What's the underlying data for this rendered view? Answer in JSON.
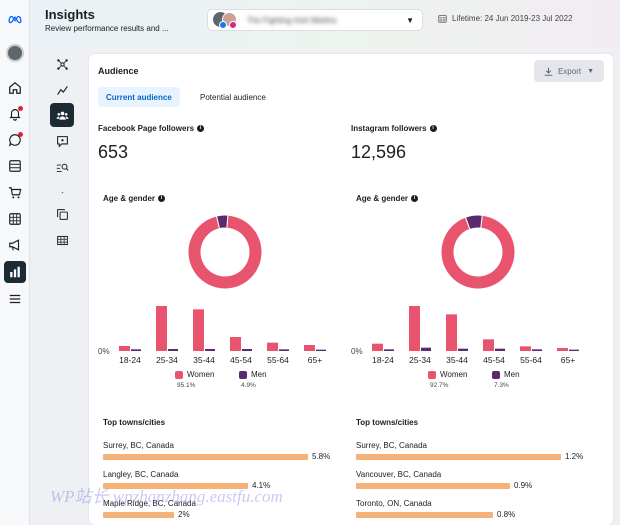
{
  "header": {
    "title": "Insights",
    "subtitle": "Review performance results and ...",
    "page_name": "The Fighting Irish Marlins",
    "date_range": "Lifetime: 24 Jun 2019-23 Jul 2022"
  },
  "card": {
    "title": "Audience",
    "export_label": "Export",
    "tabs": [
      "Current audience",
      "Potential audience"
    ]
  },
  "colors": {
    "women": "#e8546e",
    "men": "#5b2a6e",
    "towns": "#f5b278",
    "accent": "#0a66c2"
  },
  "facebook": {
    "followers_label": "Facebook Page followers",
    "followers_value": "653",
    "age_gender_label": "Age & gender",
    "legend": {
      "women": "Women",
      "women_pct": "95.1%",
      "men": "Men",
      "men_pct": "4.9%"
    },
    "towns_label": "Top towns/cities",
    "towns": [
      {
        "name": "Surrey, BC, Canada",
        "pct": "5.8%",
        "value": 5.8
      },
      {
        "name": "Langley, BC, Canada",
        "pct": "4.1%",
        "value": 4.1
      },
      {
        "name": "Maple Ridge, BC, Canada",
        "pct": "2%",
        "value": 2.0
      }
    ]
  },
  "instagram": {
    "followers_label": "Instagram followers",
    "followers_value": "12,596",
    "age_gender_label": "Age & gender",
    "legend": {
      "women": "Women",
      "women_pct": "92.7%",
      "men": "Men",
      "men_pct": "7.3%"
    },
    "towns_label": "Top towns/cities",
    "towns": [
      {
        "name": "Surrey, BC, Canada",
        "pct": "1.2%",
        "value": 1.2
      },
      {
        "name": "Vancouver, BC, Canada",
        "pct": "0.9%",
        "value": 0.9
      },
      {
        "name": "Toronto, ON, Canada",
        "pct": "0.8%",
        "value": 0.8
      }
    ]
  },
  "chart_data": [
    {
      "type": "pie",
      "title": "Facebook Page followers – Age & gender",
      "labels": [
        "Women",
        "Men"
      ],
      "values": [
        95.1,
        4.9
      ]
    },
    {
      "type": "bar",
      "title": "Facebook Page followers – Age & gender",
      "categories": [
        "18-24",
        "25-34",
        "35-44",
        "45-54",
        "55-64",
        "65+"
      ],
      "zero_label": "0%",
      "series": [
        {
          "name": "Women",
          "values": [
            1.5,
            13.5,
            12.5,
            4.2,
            2.5,
            1.8
          ]
        },
        {
          "name": "Men",
          "values": [
            0.5,
            0.6,
            0.6,
            0.6,
            0.5,
            0.4
          ]
        }
      ]
    },
    {
      "type": "pie",
      "title": "Instagram followers – Age & gender",
      "labels": [
        "Women",
        "Men"
      ],
      "values": [
        92.7,
        7.3
      ]
    },
    {
      "type": "bar",
      "title": "Instagram followers – Age & gender",
      "categories": [
        "18-24",
        "25-34",
        "35-44",
        "45-54",
        "55-64",
        "65+"
      ],
      "zero_label": "0%",
      "series": [
        {
          "name": "Women",
          "values": [
            2.2,
            13.5,
            11.0,
            3.5,
            1.4,
            0.9
          ]
        },
        {
          "name": "Men",
          "values": [
            0.5,
            1.0,
            0.7,
            0.7,
            0.5,
            0.4
          ]
        }
      ]
    }
  ],
  "watermark": "WP站长 wpzhanzhang.eastfu.com"
}
